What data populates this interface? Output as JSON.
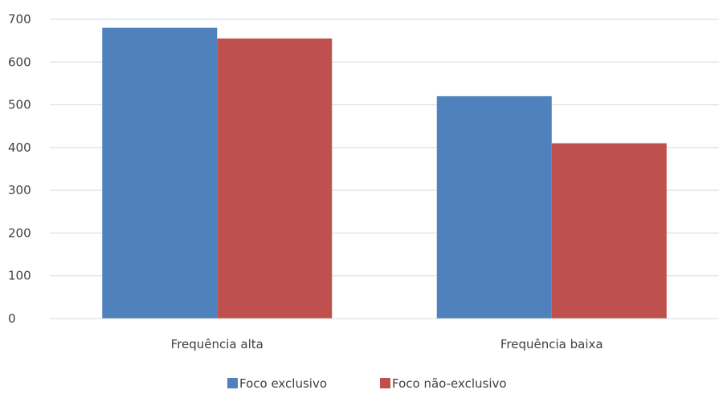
{
  "chart_data": {
    "type": "bar",
    "title": "",
    "xlabel": "",
    "ylabel": "",
    "categories": [
      "Frequência alta",
      "Frequência baixa"
    ],
    "series": [
      {
        "name": "Foco exclusivo",
        "values": [
          680,
          520
        ],
        "color": "#4f81bd"
      },
      {
        "name": "Foco não-exclusivo",
        "values": [
          655,
          410
        ],
        "color": "#c0504d"
      }
    ],
    "ylim": [
      0,
      700
    ],
    "yticks": [
      "0",
      "100",
      "200",
      "300",
      "400",
      "500",
      "600",
      "700"
    ],
    "grid": true,
    "legend_position": "bottom"
  }
}
